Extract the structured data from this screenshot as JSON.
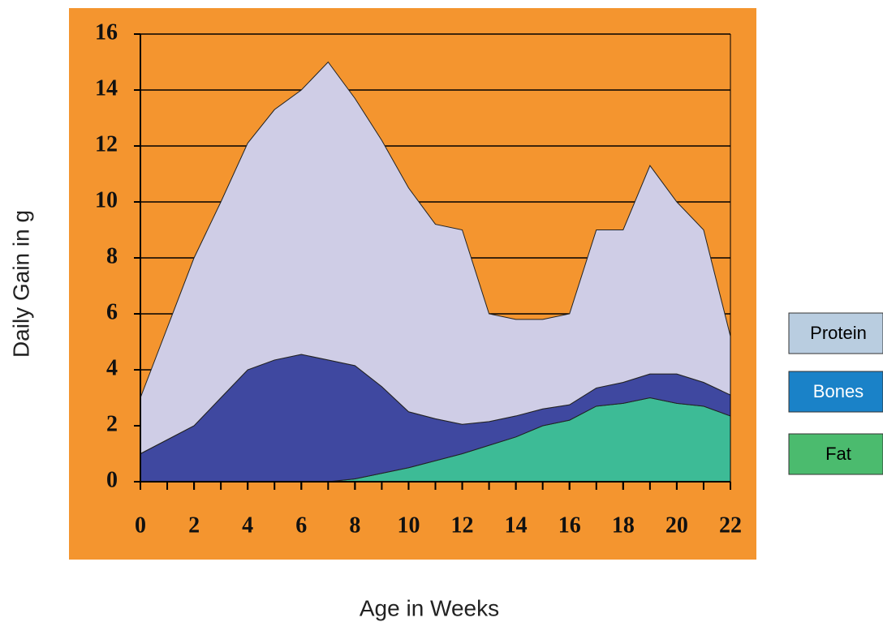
{
  "chart_data": {
    "type": "stacked-area",
    "x_label": "Age in Weeks",
    "y_label": "Daily Gain in g",
    "x": [
      0,
      1,
      2,
      3,
      4,
      5,
      6,
      7,
      8,
      9,
      10,
      11,
      12,
      13,
      14,
      15,
      16,
      17,
      18,
      19,
      20,
      21,
      22
    ],
    "series": [
      {
        "name": "Protein",
        "color": "#cfcde6",
        "legend_color": "#b9cde0",
        "legend_text_color": "#000000",
        "values": [
          2,
          4,
          6,
          7,
          8.1,
          8.95,
          9.45,
          10.65,
          9.55,
          8.8,
          8.0,
          6.95,
          6.95,
          3.85,
          3.45,
          3.2,
          3.25,
          5.65,
          5.45,
          7.45,
          6.15,
          5.45,
          2.1
        ]
      },
      {
        "name": "Bones",
        "color": "#3f48a0",
        "legend_color": "#1a82c8",
        "legend_text_color": "#ffffff",
        "values": [
          1,
          1.5,
          2,
          3,
          4,
          4.35,
          4.55,
          4.35,
          4.05,
          3.1,
          2.0,
          1.5,
          1.05,
          0.85,
          0.75,
          0.6,
          0.55,
          0.65,
          0.75,
          0.85,
          1.05,
          0.85,
          0.75
        ]
      },
      {
        "name": "Fat",
        "color": "#3dbb96",
        "legend_color": "#4bbb6e",
        "legend_text_color": "#000000",
        "values": [
          0,
          0,
          0,
          0,
          0,
          0,
          0,
          0,
          0.1,
          0.3,
          0.5,
          0.75,
          1.0,
          1.3,
          1.6,
          2.0,
          2.2,
          2.7,
          2.8,
          3.0,
          2.8,
          2.7,
          2.35
        ]
      }
    ],
    "xlim": [
      0,
      22
    ],
    "xticks": [
      0,
      2,
      4,
      6,
      8,
      10,
      12,
      14,
      16,
      18,
      20,
      22
    ],
    "ylim": [
      0,
      16
    ],
    "yticks": [
      0,
      2,
      4,
      6,
      8,
      10,
      12,
      14,
      16
    ],
    "grid": true,
    "background": "#f4952f"
  }
}
